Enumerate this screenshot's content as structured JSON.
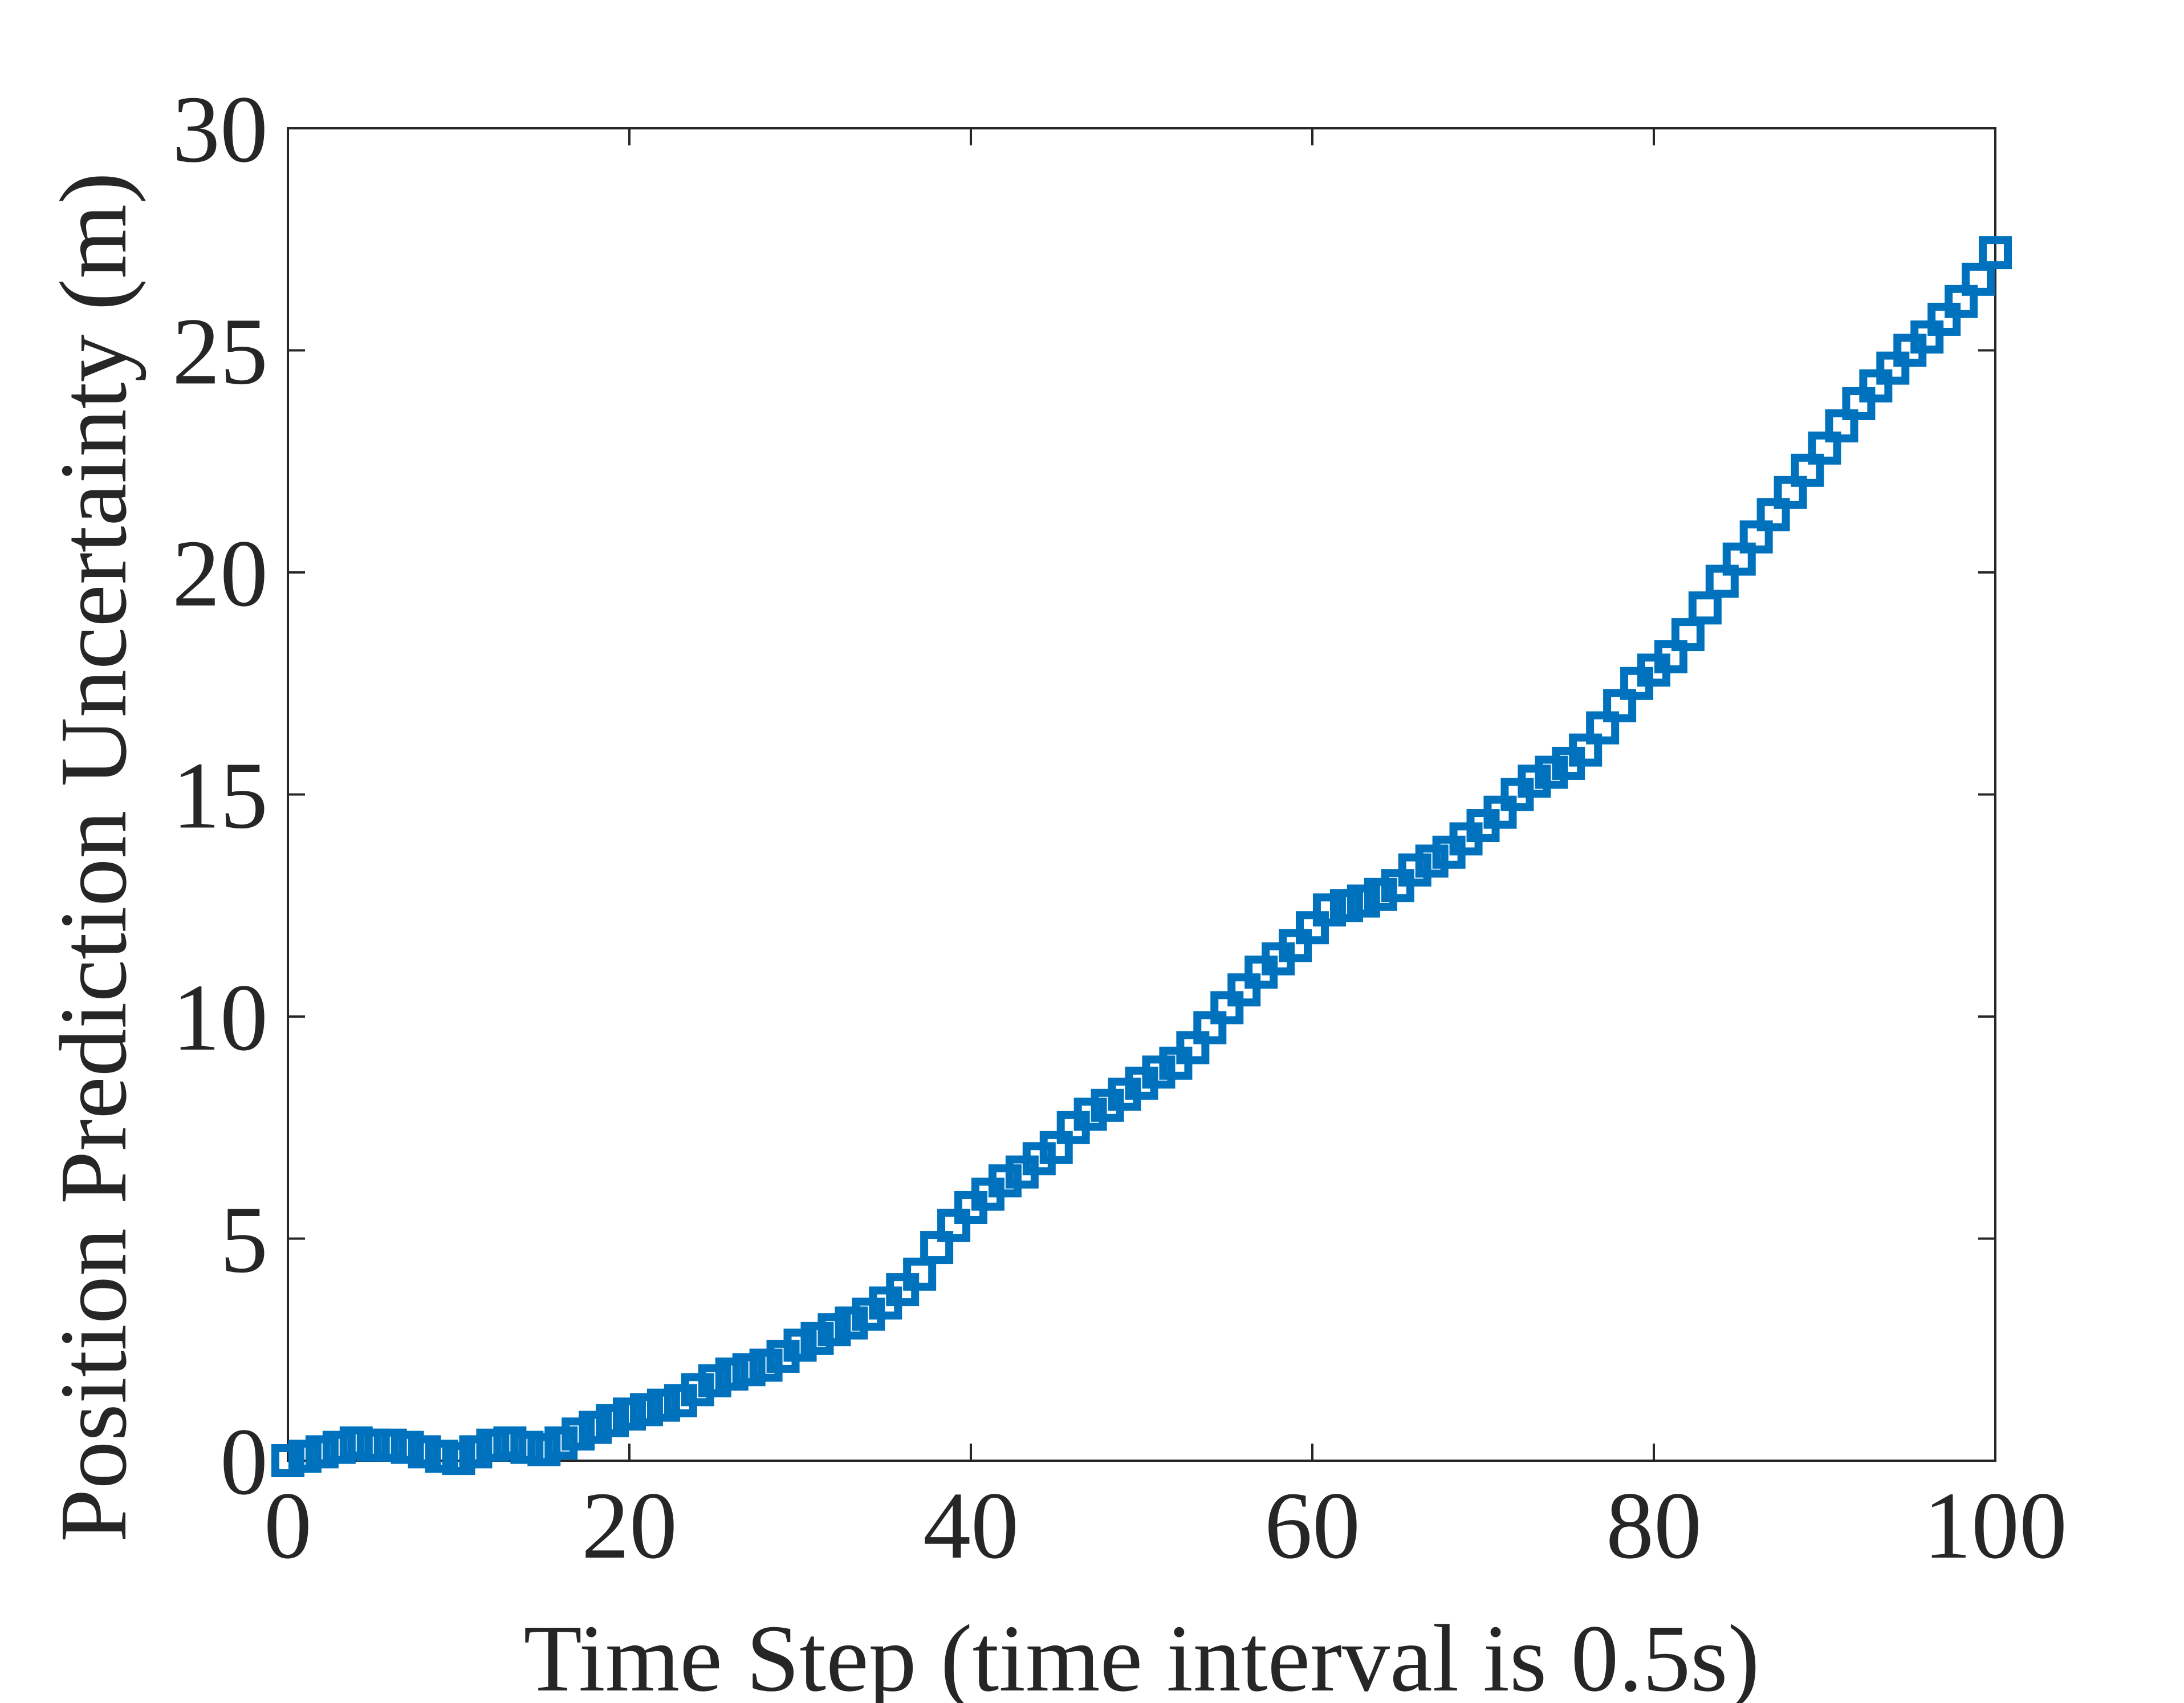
{
  "chart_data": {
    "type": "scatter",
    "title": "",
    "xlabel": "Time Step (time interval is 0.5s)",
    "ylabel": "Position Prediction Uncertainty (m)",
    "xlim": [
      0,
      100
    ],
    "ylim": [
      0,
      30
    ],
    "x_ticks": [
      0,
      20,
      40,
      60,
      80,
      100
    ],
    "y_ticks": [
      0,
      5,
      10,
      15,
      20,
      25,
      30
    ],
    "x_tick_labels": [
      "0",
      "20",
      "40",
      "60",
      "80",
      "100"
    ],
    "y_tick_labels": [
      "0",
      "5",
      "10",
      "15",
      "20",
      "25",
      "30"
    ],
    "grid": false,
    "marker": "square",
    "colors": {
      "series": "#0072BD",
      "axes": "#262626"
    },
    "series": [
      {
        "x": [
          0,
          1,
          2,
          3,
          4,
          5,
          6,
          7,
          8,
          9,
          10,
          11,
          12,
          13,
          14,
          15,
          16,
          17,
          18,
          19,
          20,
          21,
          22,
          23,
          24,
          25,
          26,
          27,
          28,
          29,
          30,
          31,
          32,
          33,
          34,
          35,
          36,
          37,
          38,
          39,
          40,
          41,
          42,
          43,
          44,
          45,
          46,
          47,
          48,
          49,
          50,
          51,
          52,
          53,
          54,
          55,
          56,
          57,
          58,
          59,
          60,
          61,
          62,
          63,
          64,
          65,
          66,
          67,
          68,
          69,
          70,
          71,
          72,
          73,
          74,
          75,
          76,
          77,
          78,
          79,
          80,
          81,
          82,
          83,
          84,
          85,
          86,
          87,
          88,
          89,
          90,
          91,
          92,
          93,
          94,
          95,
          96,
          97,
          98,
          99,
          100
        ],
        "y": [
          0.0,
          0.1,
          0.2,
          0.3,
          0.4,
          0.35,
          0.35,
          0.3,
          0.2,
          0.1,
          0.05,
          0.2,
          0.35,
          0.4,
          0.3,
          0.25,
          0.4,
          0.6,
          0.75,
          0.9,
          1.05,
          1.15,
          1.25,
          1.35,
          1.6,
          1.8,
          1.95,
          2.05,
          2.15,
          2.35,
          2.6,
          2.75,
          2.95,
          3.1,
          3.3,
          3.55,
          3.85,
          4.2,
          4.8,
          5.3,
          5.7,
          6.0,
          6.3,
          6.5,
          6.8,
          7.05,
          7.5,
          7.8,
          8.0,
          8.25,
          8.5,
          8.75,
          8.95,
          9.3,
          9.75,
          10.2,
          10.6,
          11.0,
          11.3,
          11.6,
          12.0,
          12.4,
          12.5,
          12.6,
          12.75,
          12.95,
          13.3,
          13.5,
          13.7,
          14.0,
          14.3,
          14.6,
          15.0,
          15.3,
          15.5,
          15.7,
          16.0,
          16.5,
          17.0,
          17.5,
          17.8,
          18.1,
          18.6,
          19.2,
          19.8,
          20.3,
          20.8,
          21.3,
          21.8,
          22.3,
          22.8,
          23.3,
          23.8,
          24.2,
          24.6,
          25.0,
          25.3,
          25.7,
          26.1,
          26.6,
          27.2
        ]
      }
    ]
  }
}
